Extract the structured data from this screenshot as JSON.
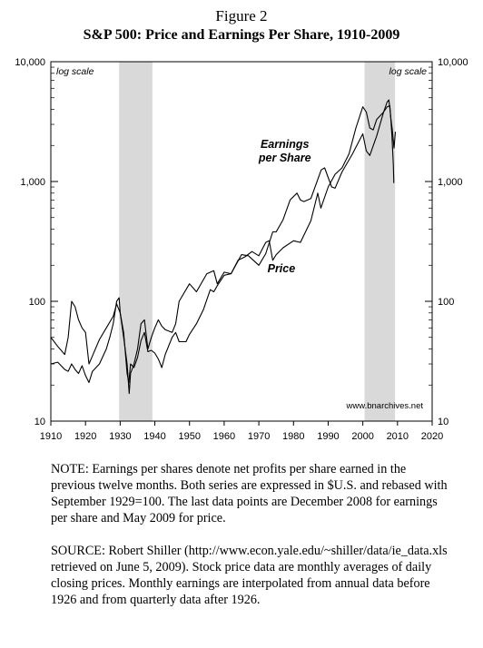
{
  "figure": {
    "label": "Figure 2",
    "title": "S&P 500: Price and Earnings Per Share, 1910-2009"
  },
  "chart_data": {
    "type": "line",
    "yscale": "log",
    "xlim": [
      1910,
      2020
    ],
    "ylim": [
      10,
      10000
    ],
    "xticks": [
      "1910",
      "1920",
      "1930",
      "1940",
      "1950",
      "1960",
      "1970",
      "1980",
      "1990",
      "2000",
      "2010",
      "2020"
    ],
    "yticks_left": [
      "10,000",
      "1,000",
      "100",
      "10"
    ],
    "yticks_right": [
      "10,000",
      "1,000",
      "100",
      "10"
    ],
    "scale_note_left": "log scale",
    "scale_note_right": "log scale",
    "watermark": "www.bnarchives.net",
    "recession_bands": [
      [
        1929.7,
        1939.3
      ],
      [
        2000.5,
        2009.3
      ]
    ],
    "series": [
      {
        "name": "Price",
        "label_lines": [
          "Price"
        ],
        "x": [
          1910,
          1912,
          1914,
          1915,
          1916,
          1917,
          1918,
          1919,
          1920,
          1921,
          1922,
          1924,
          1926,
          1927,
          1928,
          1929,
          1929.7,
          1930,
          1931,
          1932,
          1932.5,
          1933,
          1934,
          1935,
          1936,
          1937,
          1938,
          1939,
          1940,
          1941,
          1942,
          1943,
          1945,
          1946,
          1947,
          1949,
          1950,
          1952,
          1954,
          1956,
          1957,
          1958,
          1960,
          1962,
          1964,
          1966,
          1968,
          1970,
          1972,
          1973,
          1974,
          1975,
          1977,
          1980,
          1982,
          1985,
          1987,
          1987.9,
          1990,
          1992,
          1994,
          1996,
          1998,
          2000,
          2001,
          2002,
          2003,
          2004,
          2006,
          2007,
          2007.8,
          2008,
          2008.5,
          2009,
          2009.4
        ],
        "y": [
          30,
          31,
          27,
          26,
          30,
          27,
          25,
          29,
          24,
          21,
          26,
          30,
          40,
          50,
          65,
          100,
          107,
          80,
          55,
          25,
          21,
          30,
          28,
          34,
          47,
          55,
          38,
          39,
          37,
          33,
          28,
          36,
          50,
          55,
          46,
          46,
          53,
          65,
          85,
          125,
          120,
          135,
          165,
          170,
          220,
          235,
          260,
          240,
          310,
          320,
          220,
          245,
          280,
          320,
          310,
          470,
          800,
          600,
          900,
          1150,
          1300,
          1700,
          2800,
          4200,
          3800,
          2800,
          2700,
          3300,
          3800,
          4200,
          4300,
          3500,
          2700,
          1900,
          2600
        ]
      },
      {
        "name": "Earnings per Share",
        "label_lines": [
          "Earnings",
          "per Share"
        ],
        "x": [
          1910,
          1912,
          1914,
          1915,
          1916,
          1917,
          1918,
          1919,
          1920,
          1921,
          1922,
          1924,
          1926,
          1928,
          1929,
          1930,
          1931,
          1932,
          1932.6,
          1933,
          1934,
          1935,
          1936,
          1937,
          1938,
          1939,
          1940,
          1941,
          1942,
          1943,
          1945,
          1946,
          1947,
          1950,
          1952,
          1955,
          1957,
          1958,
          1960,
          1962,
          1965,
          1967,
          1970,
          1972,
          1974,
          1975,
          1977,
          1979,
          1981,
          1982,
          1983,
          1985,
          1988,
          1989,
          1991,
          1992,
          1994,
          1997,
          2000,
          2001,
          2002,
          2004,
          2006,
          2007,
          2007.5,
          2008,
          2008.4,
          2008.8,
          2008.95
        ],
        "y": [
          50,
          42,
          36,
          50,
          100,
          90,
          70,
          60,
          55,
          30,
          35,
          48,
          60,
          75,
          95,
          80,
          50,
          30,
          17,
          25,
          30,
          40,
          65,
          70,
          40,
          50,
          60,
          70,
          62,
          58,
          55,
          65,
          100,
          140,
          120,
          170,
          180,
          140,
          175,
          170,
          245,
          240,
          200,
          250,
          380,
          380,
          480,
          700,
          800,
          700,
          680,
          720,
          1250,
          1300,
          900,
          880,
          1200,
          1700,
          2500,
          1800,
          1650,
          2400,
          3800,
          4600,
          4800,
          3600,
          2400,
          1400,
          970
        ]
      }
    ]
  },
  "notes": {
    "note_label": "NOTE:",
    "note_text": " Earnings per shares denote net profits per share earned in the previous twelve months. Both series are expressed in $U.S. and rebased with September 1929=100. The last data points are December 2008 for earnings per share and May 2009 for price.",
    "source_label": "SOURCE:",
    "source_text": " Robert Shiller (http://www.econ.yale.edu/~shiller/data/ie_data.xls retrieved on June 5, 2009). Stock price data are monthly averages of daily closing prices. Monthly earnings are interpolated from annual data before 1926 and from quarterly data after 1926."
  }
}
